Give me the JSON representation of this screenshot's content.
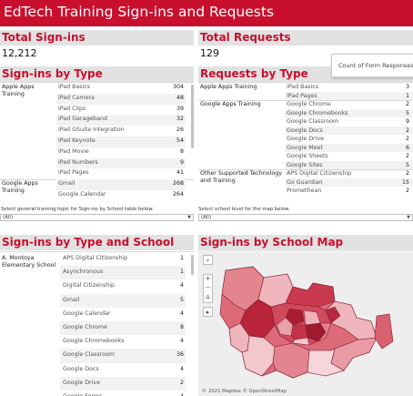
{
  "banner": {
    "title": "EdTech Training Sign-ins and Requests",
    "color": "#c8102e"
  },
  "total_signins": {
    "title": "Total Sign-ins",
    "value": "12,212"
  },
  "total_requests": {
    "title": "Total Requests",
    "value": "129"
  },
  "signins_by_type": {
    "title": "Sign-ins by Type",
    "rows": [
      {
        "group": "Apple Apps Training",
        "item": "iPad Basics",
        "value": "304"
      },
      {
        "group": "",
        "item": "iPad Camera",
        "value": "48"
      },
      {
        "group": "",
        "item": "iPad Clips",
        "value": "39"
      },
      {
        "group": "",
        "item": "iPad Garageband",
        "value": "32"
      },
      {
        "group": "",
        "item": "iPad GSuite Integration",
        "value": "26"
      },
      {
        "group": "",
        "item": "iPad Keynote",
        "value": "54"
      },
      {
        "group": "",
        "item": "iPad Movie",
        "value": "8"
      },
      {
        "group": "",
        "item": "iPad Numbers",
        "value": "9"
      },
      {
        "group": "",
        "item": "iPad Pages",
        "value": "41"
      },
      {
        "group": "Google Apps Training",
        "item": "Gmail",
        "value": "268"
      },
      {
        "group": "",
        "item": "Google Calendar",
        "value": "264"
      }
    ]
  },
  "requests_by_type": {
    "title": "Requests by Type",
    "rows": [
      {
        "group": "Apple Apps Training",
        "item": "iPad Basics",
        "value": "3"
      },
      {
        "group": "",
        "item": "iPad Pages",
        "value": "1"
      },
      {
        "group": "Google Apps Training",
        "item": "Google Chrome",
        "value": "2"
      },
      {
        "group": "",
        "item": "Google Chromebooks",
        "value": "5"
      },
      {
        "group": "",
        "item": "Google Classroom",
        "value": "9"
      },
      {
        "group": "",
        "item": "Google Docs",
        "value": "2"
      },
      {
        "group": "",
        "item": "Google Drive",
        "value": "2"
      },
      {
        "group": "",
        "item": "Google Meet",
        "value": "6"
      },
      {
        "group": "",
        "item": "Google Sheets",
        "value": "2"
      },
      {
        "group": "",
        "item": "Google Sites",
        "value": "5"
      },
      {
        "group": "Other Supported Technology and Training",
        "item": "APS Digital Citizenship",
        "value": "2"
      },
      {
        "group": "",
        "item": "Go Guardian",
        "value": "15"
      },
      {
        "group": "",
        "item": "Promethean",
        "value": "2"
      }
    ]
  },
  "tooltip": {
    "text": "Count of Form Responses Tra"
  },
  "filters": {
    "topic": {
      "label": "Select general training topic for Sign-ins by School table below.",
      "value": "(All)"
    },
    "school_level": {
      "label": "Select school level for the map below.",
      "value": "(All)"
    }
  },
  "signins_by_school": {
    "title": "Sign-ins by Type and School",
    "school": "A. Montoya Elementary School",
    "rows": [
      {
        "item": "APS Digital Citizenship",
        "value": "1"
      },
      {
        "item": "Asynchronous",
        "value": "1"
      },
      {
        "item": "Digital Citizenship",
        "value": "4"
      },
      {
        "item": "Gmail",
        "value": "5"
      },
      {
        "item": "Google Calendar",
        "value": "4"
      },
      {
        "item": "Google Chrome",
        "value": "8"
      },
      {
        "item": "Google Chromebooks",
        "value": "4"
      },
      {
        "item": "Google Classroom",
        "value": "36"
      },
      {
        "item": "Google Docs",
        "value": "4"
      },
      {
        "item": "Google Drive",
        "value": "2"
      },
      {
        "item": "Google Forms",
        "value": "4"
      }
    ]
  },
  "map": {
    "title": "Sign-ins by School Map",
    "attribution": "© 2021 Mapbox  © OpenStreetMap",
    "controls": [
      "search-icon",
      "zoom-in-icon",
      "zoom-out-icon",
      "home-icon",
      "pan-arrow-icon"
    ],
    "fill_color": "#dc6a78",
    "light_fill_color": "#efb6bd",
    "dark_fill_color": "#b8243a"
  }
}
